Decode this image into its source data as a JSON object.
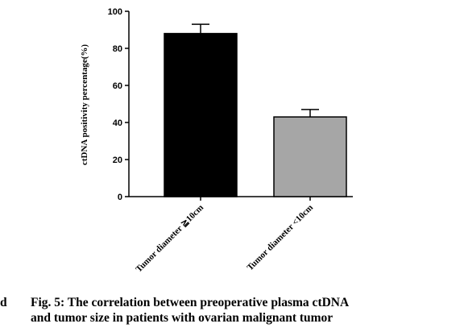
{
  "chart_data": {
    "type": "bar",
    "categories": [
      "Tumor diameter ≧10cm",
      "Tumor diameter <10cm"
    ],
    "values": [
      88,
      43
    ],
    "errors": [
      5,
      4
    ],
    "bar_colors": [
      "#000000",
      "#a6a6a6"
    ],
    "ylabel": "ctDNA positivity percentage(%)",
    "ylim": [
      0,
      100
    ],
    "yticks": [
      "0",
      "20",
      "40",
      "60",
      "80",
      "100"
    ],
    "grid": false
  },
  "caption": {
    "panel_letter": "d",
    "line1": "Fig. 5: The correlation between preoperative plasma ctDNA",
    "line2": "and tumor size in patients with ovarian malignant tumor"
  }
}
